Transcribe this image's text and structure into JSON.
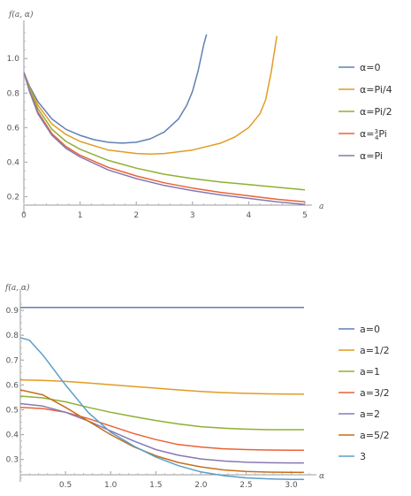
{
  "chart_data": [
    {
      "type": "line",
      "ylabel": "f(a, α)",
      "xlabel": "a",
      "xlim": [
        0,
        5
      ],
      "ylim": [
        0.1,
        1.17
      ],
      "xticks": [
        "0",
        "1",
        "2",
        "3",
        "4",
        "5"
      ],
      "yticks": [
        "0.2",
        "0.4",
        "0.6",
        "0.8",
        "1.0"
      ],
      "legend_position": "right",
      "grid": false,
      "series": [
        {
          "name": "α=0",
          "color": "#5E81B5",
          "x": [
            0,
            0.1,
            0.25,
            0.5,
            0.75,
            1.0,
            1.25,
            1.5,
            1.75,
            2.0,
            2.25,
            2.5,
            2.75,
            2.9,
            3.0,
            3.1,
            3.2,
            3.25
          ],
          "y": [
            0.92,
            0.84,
            0.75,
            0.65,
            0.59,
            0.555,
            0.53,
            0.515,
            0.51,
            0.515,
            0.535,
            0.575,
            0.65,
            0.73,
            0.81,
            0.93,
            1.08,
            1.14
          ]
        },
        {
          "name": "α=Pi/4",
          "color": "#E19C24",
          "x": [
            0,
            0.1,
            0.25,
            0.5,
            0.75,
            1.0,
            1.5,
            2.0,
            2.25,
            2.5,
            3.0,
            3.5,
            3.75,
            4.0,
            4.2,
            4.3,
            4.4,
            4.5
          ],
          "y": [
            0.92,
            0.83,
            0.73,
            0.62,
            0.56,
            0.52,
            0.47,
            0.45,
            0.447,
            0.45,
            0.47,
            0.51,
            0.545,
            0.6,
            0.68,
            0.76,
            0.92,
            1.13
          ]
        },
        {
          "name": "α=Pi/2",
          "color": "#8FB032",
          "x": [
            0,
            0.1,
            0.25,
            0.5,
            0.75,
            1.0,
            1.5,
            2.0,
            2.5,
            3.0,
            3.5,
            4.0,
            4.5,
            5.0
          ],
          "y": [
            0.92,
            0.82,
            0.71,
            0.59,
            0.52,
            0.475,
            0.41,
            0.365,
            0.33,
            0.305,
            0.285,
            0.27,
            0.255,
            0.24
          ]
        },
        {
          "name": "α=3/4Pi",
          "color": "#EB6235",
          "x": [
            0,
            0.1,
            0.25,
            0.5,
            0.75,
            1.0,
            1.5,
            2.0,
            2.5,
            3.0,
            3.5,
            4.0,
            4.5,
            5.0
          ],
          "y": [
            0.92,
            0.81,
            0.69,
            0.565,
            0.49,
            0.44,
            0.37,
            0.32,
            0.28,
            0.25,
            0.225,
            0.205,
            0.185,
            0.17
          ]
        },
        {
          "name": "α=Pi",
          "color": "#8778B3",
          "x": [
            0,
            0.1,
            0.25,
            0.5,
            0.75,
            1.0,
            1.5,
            2.0,
            2.5,
            3.0,
            3.5,
            4.0,
            4.5,
            5.0
          ],
          "y": [
            0.92,
            0.81,
            0.68,
            0.555,
            0.48,
            0.43,
            0.355,
            0.305,
            0.265,
            0.235,
            0.21,
            0.19,
            0.17,
            0.155
          ]
        }
      ]
    },
    {
      "type": "line",
      "ylabel": "f(a, α)",
      "xlabel": "α",
      "xlim": [
        0,
        3.2
      ],
      "ylim": [
        0.21,
        0.95
      ],
      "xticks": [
        "0.5",
        "1.0",
        "1.5",
        "2.0",
        "2.5",
        "3.0"
      ],
      "yticks": [
        "0.3",
        "0.4",
        "0.5",
        "0.6",
        "0.7",
        "0.8",
        "0.9"
      ],
      "legend_position": "right",
      "grid": false,
      "series": [
        {
          "name": "a=0",
          "color": "#5E81B5",
          "x": [
            0,
            3.14159
          ],
          "y": [
            0.912,
            0.912
          ]
        },
        {
          "name": "a=1/2",
          "color": "#E19C24",
          "x": [
            0,
            0.25,
            0.5,
            0.75,
            1.0,
            1.25,
            1.5,
            1.75,
            2.0,
            2.25,
            2.5,
            2.75,
            3.0,
            3.14
          ],
          "y": [
            0.62,
            0.618,
            0.614,
            0.608,
            0.601,
            0.594,
            0.587,
            0.58,
            0.574,
            0.569,
            0.566,
            0.564,
            0.563,
            0.563
          ]
        },
        {
          "name": "a=1",
          "color": "#8FB032",
          "x": [
            0,
            0.25,
            0.5,
            0.75,
            1.0,
            1.25,
            1.5,
            1.75,
            2.0,
            2.25,
            2.5,
            2.75,
            3.0,
            3.14
          ],
          "y": [
            0.555,
            0.548,
            0.532,
            0.51,
            0.49,
            0.473,
            0.457,
            0.443,
            0.432,
            0.426,
            0.422,
            0.42,
            0.42,
            0.42
          ]
        },
        {
          "name": "a=3/2",
          "color": "#EB6235",
          "x": [
            0,
            0.25,
            0.5,
            0.75,
            1.0,
            1.25,
            1.5,
            1.75,
            2.0,
            2.25,
            2.5,
            2.75,
            3.0,
            3.14
          ],
          "y": [
            0.51,
            0.505,
            0.49,
            0.465,
            0.435,
            0.405,
            0.38,
            0.36,
            0.35,
            0.343,
            0.34,
            0.338,
            0.337,
            0.337
          ]
        },
        {
          "name": "a=2",
          "color": "#8778B3",
          "x": [
            0,
            0.25,
            0.5,
            0.75,
            1.0,
            1.25,
            1.5,
            1.75,
            2.0,
            2.25,
            2.5,
            2.75,
            3.0,
            3.14
          ],
          "y": [
            0.525,
            0.515,
            0.49,
            0.455,
            0.415,
            0.375,
            0.34,
            0.317,
            0.302,
            0.294,
            0.289,
            0.287,
            0.286,
            0.286
          ]
        },
        {
          "name": "a=5/2",
          "color": "#C56E1A",
          "x": [
            0,
            0.25,
            0.5,
            0.75,
            1.0,
            1.25,
            1.5,
            1.75,
            2.0,
            2.25,
            2.5,
            2.75,
            3.0,
            3.14
          ],
          "y": [
            0.58,
            0.56,
            0.51,
            0.455,
            0.4,
            0.352,
            0.315,
            0.288,
            0.27,
            0.258,
            0.252,
            0.249,
            0.248,
            0.248
          ]
        },
        {
          "name": "3",
          "color": "#5D9EC7",
          "x": [
            0,
            0.1,
            0.25,
            0.5,
            0.75,
            1.0,
            1.25,
            1.5,
            1.75,
            2.0,
            2.25,
            2.5,
            2.75,
            3.0,
            3.14
          ],
          "y": [
            0.79,
            0.78,
            0.72,
            0.6,
            0.49,
            0.41,
            0.355,
            0.31,
            0.275,
            0.25,
            0.235,
            0.226,
            0.222,
            0.22,
            0.22
          ]
        }
      ]
    }
  ],
  "legend_labels": {
    "top": [
      {
        "prefix": "α=0"
      },
      {
        "prefix": "α=Pi/4"
      },
      {
        "prefix": "α=Pi/2"
      },
      {
        "prefix": "α=",
        "num": "3",
        "den": "4",
        "suffix": "Pi"
      },
      {
        "prefix": "α=Pi"
      }
    ]
  }
}
